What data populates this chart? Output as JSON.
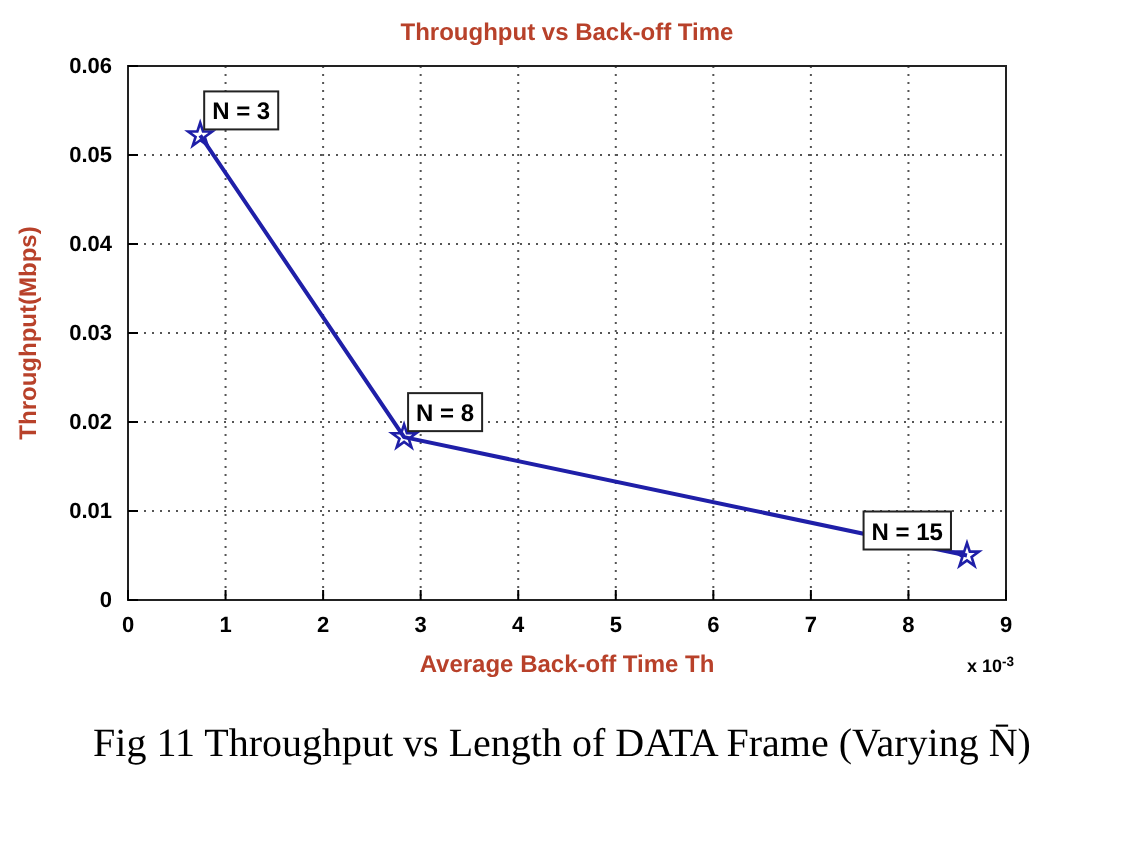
{
  "chart_data": {
    "type": "line",
    "title": "Throughput vs Back-off Time",
    "xlabel": "Average Back-off Time Th",
    "ylabel": "Throughput(Mbps)",
    "x": [
      0.74,
      2.83,
      8.6
    ],
    "series": [
      {
        "color": "#1f1fa8",
        "values": [
          0.0522,
          0.0183,
          0.005
        ]
      }
    ],
    "xlim": [
      0,
      9
    ],
    "xticks": [
      0,
      1,
      2,
      3,
      4,
      5,
      6,
      7,
      8,
      9
    ],
    "ylim": [
      0,
      0.06
    ],
    "yticks": [
      0,
      0.01,
      0.02,
      0.03,
      0.04,
      0.05,
      0.06
    ],
    "grid": true,
    "marker": "star",
    "line_style": "solid",
    "annotations": [
      {
        "text": "N = 3",
        "x": 0.74,
        "y": 0.0522
      },
      {
        "text": "N = 8",
        "x": 2.83,
        "y": 0.0183
      },
      {
        "text": "N = 15",
        "x": 8.6,
        "y": 0.005
      },
      "x 10$^{-3}$",
      "Fig 11 Throughput vs Length of DATA Frame (Varying N̄)"
    ]
  }
}
